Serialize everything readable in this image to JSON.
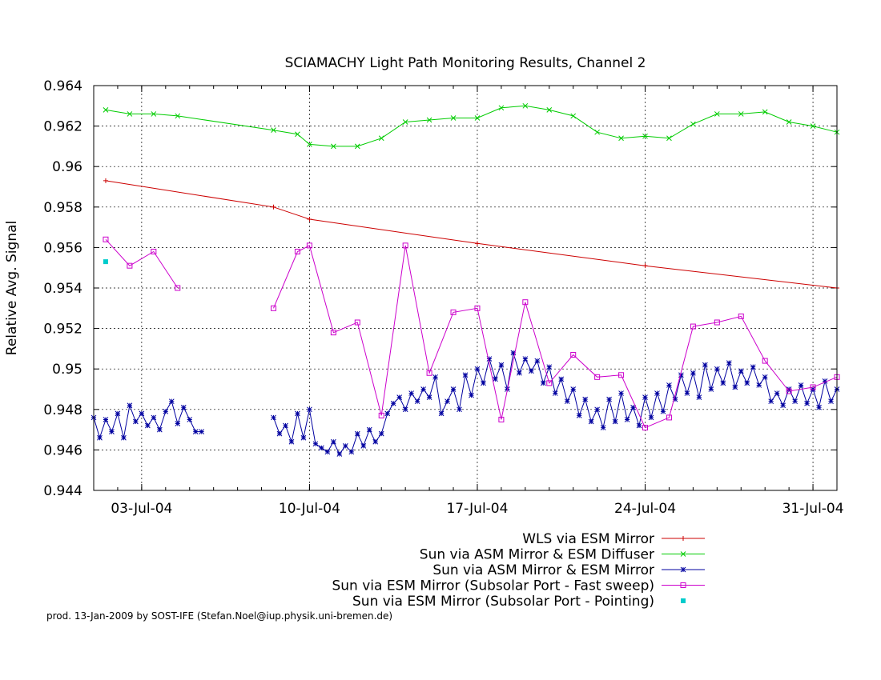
{
  "chart_data": {
    "type": "line",
    "title": "SCIAMACHY Light Path Monitoring Results, Channel 2",
    "xlabel": "",
    "ylabel": "Relative Avg. Signal",
    "xlim": [
      "2004-07-01",
      "2004-08-01"
    ],
    "ylim": [
      0.944,
      0.964
    ],
    "xticks": [
      "03-Jul-04",
      "10-Jul-04",
      "17-Jul-04",
      "24-Jul-04",
      "31-Jul-04"
    ],
    "yticks": [
      "0.944",
      "0.946",
      "0.948",
      "0.95",
      "0.952",
      "0.954",
      "0.956",
      "0.958",
      "0.96",
      "0.962",
      "0.964"
    ],
    "grid": true,
    "legend_position": "bottom-right",
    "series": [
      {
        "name": "WLS via ESM Mirror",
        "color": "#cc0000",
        "marker": "plus",
        "x": [
          "2004-07-01T12:00",
          "2004-07-08T12:00",
          "2004-07-10T00:00",
          "2004-07-17T00:00",
          "2004-07-24T00:00",
          "2004-08-01T00:00"
        ],
        "y": [
          0.9593,
          0.958,
          0.9574,
          0.9562,
          0.9551,
          0.954
        ]
      },
      {
        "name": "Sun via ASM Mirror & ESM Diffuser",
        "color": "#00cc00",
        "marker": "x",
        "x": [
          "2004-07-01T12:00",
          "2004-07-02T12:00",
          "2004-07-03T12:00",
          "2004-07-04T12:00",
          "2004-07-08T12:00",
          "2004-07-09T12:00",
          "2004-07-10T00:00",
          "2004-07-11T00:00",
          "2004-07-12T00:00",
          "2004-07-13T00:00",
          "2004-07-14T00:00",
          "2004-07-15T00:00",
          "2004-07-16T00:00",
          "2004-07-17T00:00",
          "2004-07-18T00:00",
          "2004-07-19T00:00",
          "2004-07-20T00:00",
          "2004-07-21T00:00",
          "2004-07-22T00:00",
          "2004-07-23T00:00",
          "2004-07-24T00:00",
          "2004-07-25T00:00",
          "2004-07-26T00:00",
          "2004-07-27T00:00",
          "2004-07-28T00:00",
          "2004-07-29T00:00",
          "2004-07-30T00:00",
          "2004-07-31T00:00",
          "2004-08-01T00:00"
        ],
        "y": [
          0.9628,
          0.9626,
          0.9626,
          0.9625,
          0.9618,
          0.9616,
          0.9611,
          0.961,
          0.961,
          0.9614,
          0.9622,
          0.9623,
          0.9624,
          0.9624,
          0.9629,
          0.963,
          0.9628,
          0.9625,
          0.9617,
          0.9614,
          0.9615,
          0.9614,
          0.9621,
          0.9626,
          0.9626,
          0.9627,
          0.9622,
          0.962,
          0.9617
        ]
      },
      {
        "name": "Sun via ASM Mirror & ESM Mirror",
        "color": "#0000a0",
        "marker": "star",
        "segments": [
          {
            "x": [
              "2004-07-01T00:00",
              "2004-07-01T06:00",
              "2004-07-01T12:00",
              "2004-07-01T18:00",
              "2004-07-02T00:00",
              "2004-07-02T06:00",
              "2004-07-02T12:00",
              "2004-07-02T18:00",
              "2004-07-03T00:00",
              "2004-07-03T06:00",
              "2004-07-03T12:00",
              "2004-07-03T18:00",
              "2004-07-04T00:00",
              "2004-07-04T06:00",
              "2004-07-04T12:00",
              "2004-07-04T18:00",
              "2004-07-05T00:00",
              "2004-07-05T06:00",
              "2004-07-05T12:00"
            ],
            "y": [
              0.9476,
              0.9466,
              0.9475,
              0.9469,
              0.9478,
              0.9466,
              0.9482,
              0.9474,
              0.9478,
              0.9472,
              0.9476,
              0.947,
              0.9479,
              0.9484,
              0.9473,
              0.9481,
              0.9475,
              0.9469,
              0.9469
            ]
          },
          {
            "x": [
              "2004-07-08T12:00",
              "2004-07-08T18:00",
              "2004-07-09T00:00",
              "2004-07-09T06:00",
              "2004-07-09T12:00",
              "2004-07-09T18:00",
              "2004-07-10T00:00",
              "2004-07-10T06:00",
              "2004-07-10T12:00",
              "2004-07-10T18:00",
              "2004-07-11T00:00",
              "2004-07-11T06:00",
              "2004-07-11T12:00",
              "2004-07-11T18:00",
              "2004-07-12T00:00",
              "2004-07-12T06:00",
              "2004-07-12T12:00",
              "2004-07-12T18:00",
              "2004-07-13T00:00",
              "2004-07-13T06:00",
              "2004-07-13T12:00",
              "2004-07-13T18:00",
              "2004-07-14T00:00",
              "2004-07-14T06:00",
              "2004-07-14T12:00",
              "2004-07-14T18:00",
              "2004-07-15T00:00",
              "2004-07-15T06:00",
              "2004-07-15T12:00",
              "2004-07-15T18:00",
              "2004-07-16T00:00",
              "2004-07-16T06:00",
              "2004-07-16T12:00",
              "2004-07-16T18:00",
              "2004-07-17T00:00",
              "2004-07-17T06:00",
              "2004-07-17T12:00",
              "2004-07-17T18:00",
              "2004-07-18T00:00",
              "2004-07-18T06:00",
              "2004-07-18T12:00",
              "2004-07-18T18:00",
              "2004-07-19T00:00",
              "2004-07-19T06:00",
              "2004-07-19T12:00",
              "2004-07-19T18:00",
              "2004-07-20T00:00",
              "2004-07-20T06:00",
              "2004-07-20T12:00",
              "2004-07-20T18:00",
              "2004-07-21T00:00",
              "2004-07-21T06:00",
              "2004-07-21T12:00",
              "2004-07-21T18:00",
              "2004-07-22T00:00",
              "2004-07-22T06:00",
              "2004-07-22T12:00",
              "2004-07-22T18:00",
              "2004-07-23T00:00",
              "2004-07-23T06:00",
              "2004-07-23T12:00",
              "2004-07-23T18:00",
              "2004-07-24T00:00",
              "2004-07-24T06:00",
              "2004-07-24T12:00",
              "2004-07-24T18:00",
              "2004-07-25T00:00",
              "2004-07-25T06:00",
              "2004-07-25T12:00",
              "2004-07-25T18:00",
              "2004-07-26T00:00",
              "2004-07-26T06:00",
              "2004-07-26T12:00",
              "2004-07-26T18:00",
              "2004-07-27T00:00",
              "2004-07-27T06:00",
              "2004-07-27T12:00",
              "2004-07-27T18:00",
              "2004-07-28T00:00",
              "2004-07-28T06:00",
              "2004-07-28T12:00",
              "2004-07-28T18:00",
              "2004-07-29T00:00",
              "2004-07-29T06:00",
              "2004-07-29T12:00",
              "2004-07-29T18:00",
              "2004-07-30T00:00",
              "2004-07-30T06:00",
              "2004-07-30T12:00",
              "2004-07-30T18:00",
              "2004-07-31T00:00",
              "2004-07-31T06:00",
              "2004-07-31T12:00",
              "2004-07-31T18:00",
              "2004-08-01T00:00"
            ],
            "y": [
              0.9476,
              0.9468,
              0.9472,
              0.9464,
              0.9478,
              0.9466,
              0.948,
              0.9463,
              0.9461,
              0.9459,
              0.9464,
              0.9458,
              0.9462,
              0.9459,
              0.9468,
              0.9462,
              0.947,
              0.9464,
              0.9468,
              0.9478,
              0.9483,
              0.9486,
              0.948,
              0.9488,
              0.9484,
              0.949,
              0.9486,
              0.9496,
              0.9478,
              0.9484,
              0.949,
              0.948,
              0.9497,
              0.9487,
              0.95,
              0.9493,
              0.9505,
              0.9495,
              0.9502,
              0.949,
              0.9508,
              0.9498,
              0.9505,
              0.9499,
              0.9504,
              0.9493,
              0.9501,
              0.9488,
              0.9495,
              0.9484,
              0.949,
              0.9477,
              0.9485,
              0.9474,
              0.948,
              0.9471,
              0.9485,
              0.9474,
              0.9488,
              0.9475,
              0.9481,
              0.9472,
              0.9486,
              0.9476,
              0.9488,
              0.9479,
              0.9492,
              0.9485,
              0.9497,
              0.9488,
              0.9498,
              0.9486,
              0.9502,
              0.949,
              0.95,
              0.9493,
              0.9503,
              0.9491,
              0.9499,
              0.9493,
              0.9501,
              0.9492,
              0.9496,
              0.9484,
              0.9488,
              0.9482,
              0.949,
              0.9484,
              0.9492,
              0.9483,
              0.949,
              0.9481,
              0.9494,
              0.9484,
              0.949
            ]
          }
        ]
      },
      {
        "name": "Sun via ESM Mirror (Subsolar Port - Fast sweep)",
        "color": "#cc00cc",
        "marker": "square",
        "segments": [
          {
            "x": [
              "2004-07-01T12:00",
              "2004-07-02T12:00",
              "2004-07-03T12:00",
              "2004-07-04T12:00"
            ],
            "y": [
              0.9564,
              0.9551,
              0.9558,
              0.954
            ]
          },
          {
            "x": [
              "2004-07-08T12:00",
              "2004-07-09T12:00",
              "2004-07-10T00:00",
              "2004-07-11T00:00",
              "2004-07-12T00:00",
              "2004-07-13T00:00",
              "2004-07-14T00:00",
              "2004-07-15T00:00",
              "2004-07-16T00:00",
              "2004-07-17T00:00",
              "2004-07-18T00:00",
              "2004-07-19T00:00",
              "2004-07-20T00:00",
              "2004-07-21T00:00",
              "2004-07-22T00:00",
              "2004-07-23T00:00",
              "2004-07-24T00:00",
              "2004-07-25T00:00",
              "2004-07-26T00:00",
              "2004-07-27T00:00",
              "2004-07-28T00:00",
              "2004-07-29T00:00",
              "2004-07-30T00:00",
              "2004-07-31T00:00",
              "2004-08-01T00:00"
            ],
            "y": [
              0.953,
              0.9558,
              0.9561,
              0.9518,
              0.9523,
              0.9477,
              0.9561,
              0.9498,
              0.9528,
              0.953,
              0.9475,
              0.9533,
              0.9493,
              0.9507,
              0.9496,
              0.9497,
              0.9471,
              0.9476,
              0.9521,
              0.9523,
              0.9526,
              0.9504,
              0.9489,
              0.9491,
              0.9496
            ]
          }
        ]
      },
      {
        "name": "Sun via ESM Mirror (Subsolar Port - Pointing)",
        "color": "#00cccc",
        "marker": "filled-square",
        "x": [
          "2004-07-01T12:00"
        ],
        "y": [
          0.9553
        ]
      }
    ]
  },
  "footer_text": "prod. 13-Jan-2009 by SOST-IFE (Stefan.Noel@iup.physik.uni-bremen.de)"
}
